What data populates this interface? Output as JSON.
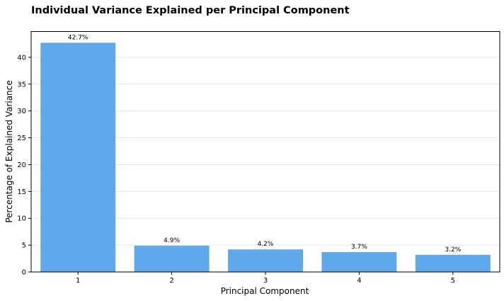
{
  "chart_data": {
    "type": "bar",
    "title": "Individual Variance Explained per Principal Component",
    "xlabel": "Principal Component",
    "ylabel": "Percentage of Explained Variance",
    "categories": [
      "1",
      "2",
      "3",
      "4",
      "5"
    ],
    "values": [
      42.7,
      4.9,
      4.2,
      3.7,
      3.2
    ],
    "data_labels": [
      "42.7%",
      "4.9%",
      "4.2%",
      "3.7%",
      "3.2%"
    ],
    "ylim": [
      0,
      44.8
    ],
    "yticks": [
      0,
      5,
      10,
      15,
      20,
      25,
      30,
      35,
      40
    ],
    "grid": true,
    "bar_color": "#5fa8ec"
  }
}
